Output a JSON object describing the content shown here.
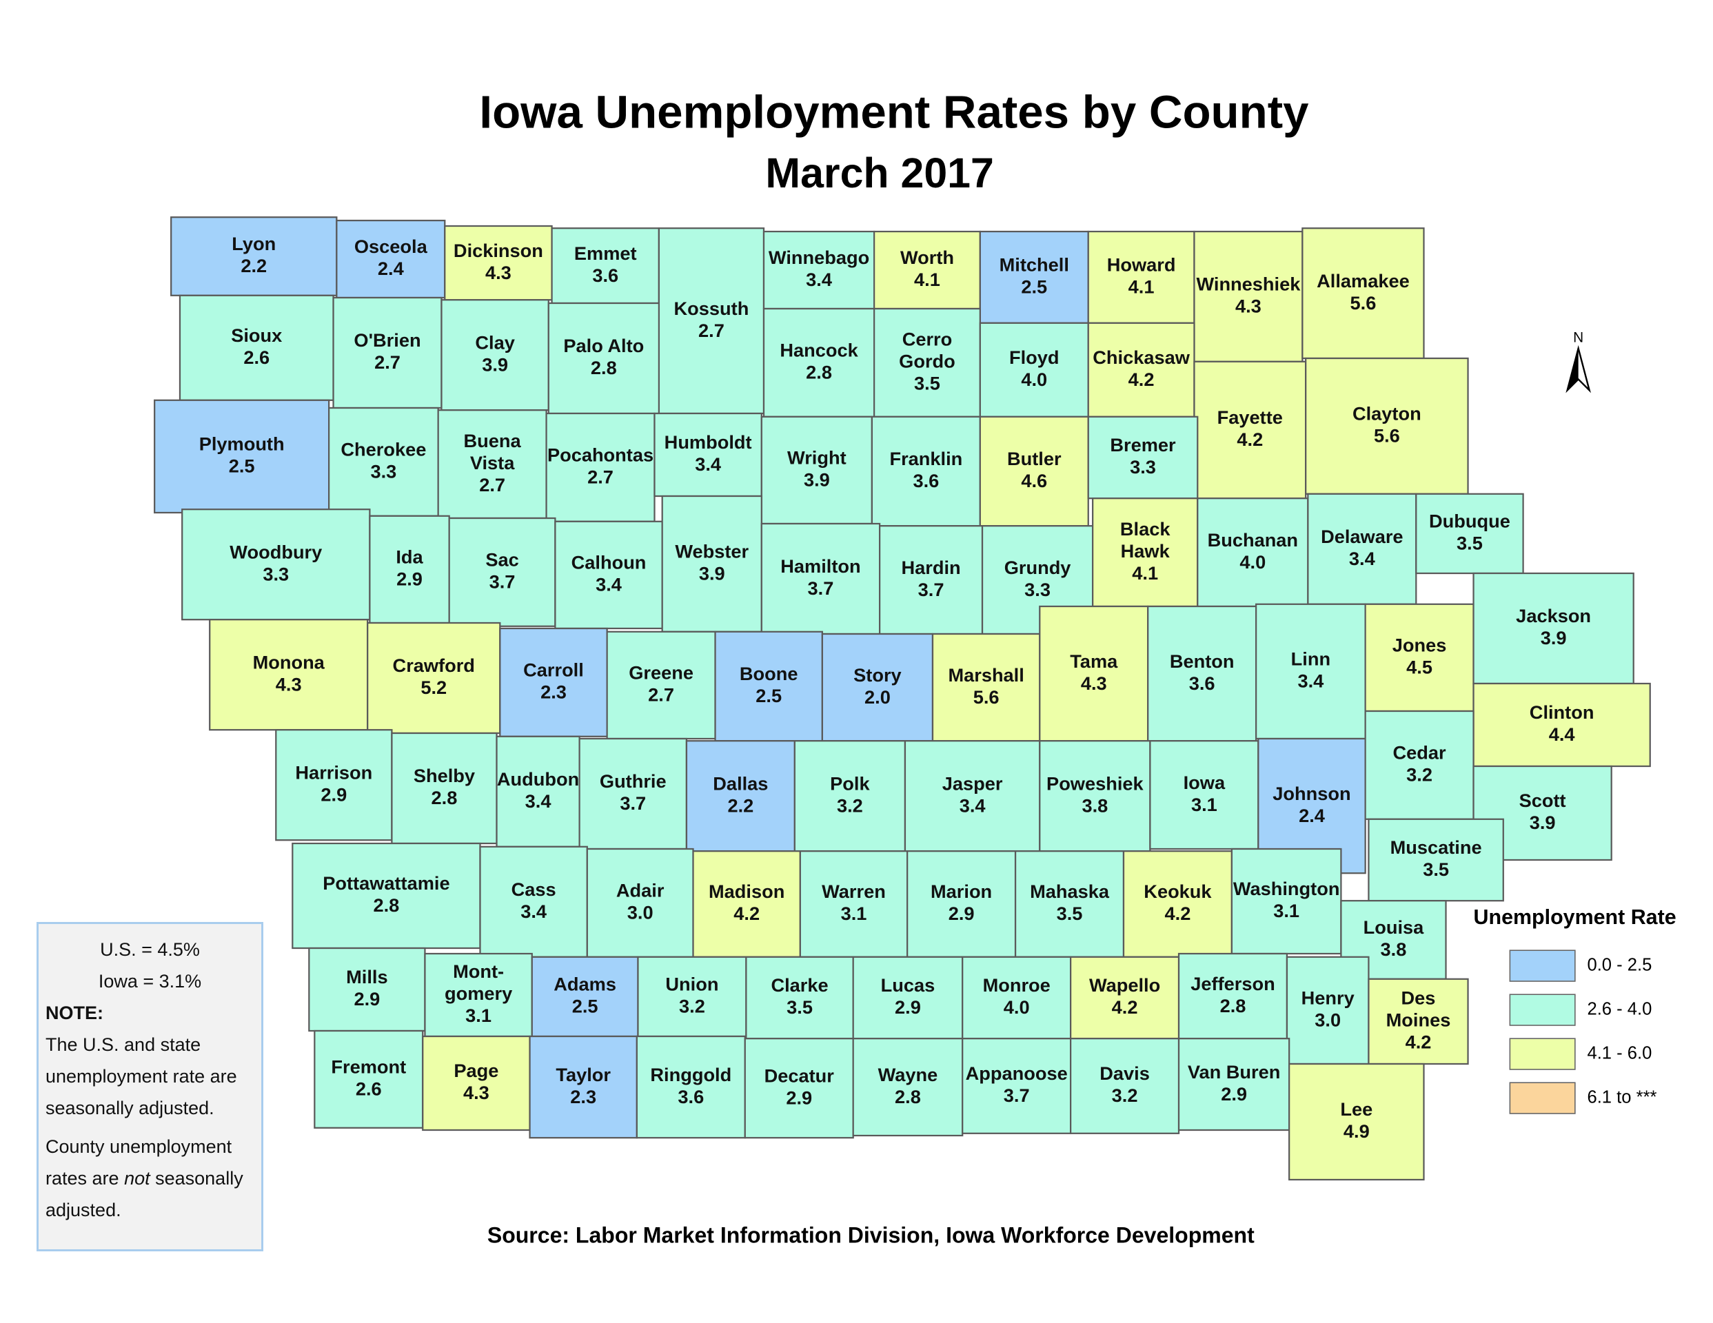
{
  "title": "Iowa Unemployment Rates by County",
  "subtitle": "March 2017",
  "north": "N",
  "source": "Source: Labor Market Information Division, Iowa Workforce Development",
  "legend": {
    "title": "Unemployment Rate",
    "items": [
      {
        "label": "0.0 - 2.5",
        "color": "#a3d2fa"
      },
      {
        "label": "2.6 - 4.0",
        "color": "#b1fbe3"
      },
      {
        "label": "4.1 - 6.0",
        "color": "#edffa8"
      },
      {
        "label": "6.1 to ***",
        "color": "#fbd59c"
      }
    ]
  },
  "note": {
    "us": "U.S. = 4.5%",
    "iowa": "Iowa = 3.1%",
    "heading": "NOTE:",
    "state": "The U.S. and state unemployment rate are seasonally adjusted.",
    "county": [
      "County unemployment rates are ",
      "not",
      " seasonally adjusted."
    ]
  },
  "counties": [
    {
      "name": [
        "Lyon"
      ],
      "value": "2.2",
      "color": "#a3d2fa"
    },
    {
      "name": [
        "Osceola"
      ],
      "value": "2.4",
      "color": "#a3d2fa"
    },
    {
      "name": [
        "Dickinson"
      ],
      "value": "4.3",
      "color": "#edffa8"
    },
    {
      "name": [
        "Emmet"
      ],
      "value": "3.6",
      "color": "#b1fbe3"
    },
    {
      "name": [
        "Kossuth"
      ],
      "value": "2.7",
      "color": "#b1fbe3"
    },
    {
      "name": [
        "Winnebago"
      ],
      "value": "3.4",
      "color": "#b1fbe3"
    },
    {
      "name": [
        "Worth"
      ],
      "value": "4.1",
      "color": "#edffa8"
    },
    {
      "name": [
        "Mitchell"
      ],
      "value": "2.5",
      "color": "#a3d2fa"
    },
    {
      "name": [
        "Howard"
      ],
      "value": "4.1",
      "color": "#edffa8"
    },
    {
      "name": [
        "Winneshiek"
      ],
      "value": "4.3",
      "color": "#edffa8"
    },
    {
      "name": [
        "Allamakee"
      ],
      "value": "5.6",
      "color": "#edffa8"
    },
    {
      "name": [
        "Sioux"
      ],
      "value": "2.6",
      "color": "#b1fbe3"
    },
    {
      "name": [
        "O'Brien"
      ],
      "value": "2.7",
      "color": "#b1fbe3"
    },
    {
      "name": [
        "Clay"
      ],
      "value": "3.9",
      "color": "#b1fbe3"
    },
    {
      "name": [
        "Palo Alto"
      ],
      "value": "2.8",
      "color": "#b1fbe3"
    },
    {
      "name": [
        "Hancock"
      ],
      "value": "2.8",
      "color": "#b1fbe3"
    },
    {
      "name": [
        "Cerro",
        "Gordo"
      ],
      "value": "3.5",
      "color": "#b1fbe3"
    },
    {
      "name": [
        "Floyd"
      ],
      "value": "4.0",
      "color": "#b1fbe3"
    },
    {
      "name": [
        "Chickasaw"
      ],
      "value": "4.2",
      "color": "#edffa8"
    },
    {
      "name": [
        "Fayette"
      ],
      "value": "4.2",
      "color": "#edffa8"
    },
    {
      "name": [
        "Clayton"
      ],
      "value": "5.6",
      "color": "#edffa8"
    },
    {
      "name": [
        "Plymouth"
      ],
      "value": "2.5",
      "color": "#a3d2fa"
    },
    {
      "name": [
        "Cherokee"
      ],
      "value": "3.3",
      "color": "#b1fbe3"
    },
    {
      "name": [
        "Buena",
        "Vista"
      ],
      "value": "2.7",
      "color": "#b1fbe3"
    },
    {
      "name": [
        "Pocahontas"
      ],
      "value": "2.7",
      "color": "#b1fbe3"
    },
    {
      "name": [
        "Humboldt"
      ],
      "value": "3.4",
      "color": "#b1fbe3"
    },
    {
      "name": [
        "Wright"
      ],
      "value": "3.9",
      "color": "#b1fbe3"
    },
    {
      "name": [
        "Franklin"
      ],
      "value": "3.6",
      "color": "#b1fbe3"
    },
    {
      "name": [
        "Butler"
      ],
      "value": "4.6",
      "color": "#edffa8"
    },
    {
      "name": [
        "Bremer"
      ],
      "value": "3.3",
      "color": "#b1fbe3"
    },
    {
      "name": [
        "Woodbury"
      ],
      "value": "3.3",
      "color": "#b1fbe3"
    },
    {
      "name": [
        "Ida"
      ],
      "value": "2.9",
      "color": "#b1fbe3"
    },
    {
      "name": [
        "Sac"
      ],
      "value": "3.7",
      "color": "#b1fbe3"
    },
    {
      "name": [
        "Calhoun"
      ],
      "value": "3.4",
      "color": "#b1fbe3"
    },
    {
      "name": [
        "Webster"
      ],
      "value": "3.9",
      "color": "#b1fbe3"
    },
    {
      "name": [
        "Hamilton"
      ],
      "value": "3.7",
      "color": "#b1fbe3"
    },
    {
      "name": [
        "Hardin"
      ],
      "value": "3.7",
      "color": "#b1fbe3"
    },
    {
      "name": [
        "Grundy"
      ],
      "value": "3.3",
      "color": "#b1fbe3"
    },
    {
      "name": [
        "Black",
        "Hawk"
      ],
      "value": "4.1",
      "color": "#edffa8"
    },
    {
      "name": [
        "Buchanan"
      ],
      "value": "4.0",
      "color": "#b1fbe3"
    },
    {
      "name": [
        "Delaware"
      ],
      "value": "3.4",
      "color": "#b1fbe3"
    },
    {
      "name": [
        "Dubuque"
      ],
      "value": "3.5",
      "color": "#b1fbe3"
    },
    {
      "name": [
        "Monona"
      ],
      "value": "4.3",
      "color": "#edffa8"
    },
    {
      "name": [
        "Crawford"
      ],
      "value": "5.2",
      "color": "#edffa8"
    },
    {
      "name": [
        "Carroll"
      ],
      "value": "2.3",
      "color": "#a3d2fa"
    },
    {
      "name": [
        "Greene"
      ],
      "value": "2.7",
      "color": "#b1fbe3"
    },
    {
      "name": [
        "Boone"
      ],
      "value": "2.5",
      "color": "#a3d2fa"
    },
    {
      "name": [
        "Story"
      ],
      "value": "2.0",
      "color": "#a3d2fa"
    },
    {
      "name": [
        "Marshall"
      ],
      "value": "5.6",
      "color": "#edffa8"
    },
    {
      "name": [
        "Tama"
      ],
      "value": "4.3",
      "color": "#edffa8"
    },
    {
      "name": [
        "Benton"
      ],
      "value": "3.6",
      "color": "#b1fbe3"
    },
    {
      "name": [
        "Linn"
      ],
      "value": "3.4",
      "color": "#b1fbe3"
    },
    {
      "name": [
        "Jones"
      ],
      "value": "4.5",
      "color": "#edffa8"
    },
    {
      "name": [
        "Jackson"
      ],
      "value": "3.9",
      "color": "#b1fbe3"
    },
    {
      "name": [
        "Clinton"
      ],
      "value": "4.4",
      "color": "#edffa8"
    },
    {
      "name": [
        "Harrison"
      ],
      "value": "2.9",
      "color": "#b1fbe3"
    },
    {
      "name": [
        "Shelby"
      ],
      "value": "2.8",
      "color": "#b1fbe3"
    },
    {
      "name": [
        "Audubon"
      ],
      "value": "3.4",
      "color": "#b1fbe3"
    },
    {
      "name": [
        "Guthrie"
      ],
      "value": "3.7",
      "color": "#b1fbe3"
    },
    {
      "name": [
        "Dallas"
      ],
      "value": "2.2",
      "color": "#a3d2fa"
    },
    {
      "name": [
        "Polk"
      ],
      "value": "3.2",
      "color": "#b1fbe3"
    },
    {
      "name": [
        "Jasper"
      ],
      "value": "3.4",
      "color": "#b1fbe3"
    },
    {
      "name": [
        "Poweshiek"
      ],
      "value": "3.8",
      "color": "#b1fbe3"
    },
    {
      "name": [
        "Iowa"
      ],
      "value": "3.1",
      "color": "#b1fbe3"
    },
    {
      "name": [
        "Johnson"
      ],
      "value": "2.4",
      "color": "#a3d2fa"
    },
    {
      "name": [
        "Cedar"
      ],
      "value": "3.2",
      "color": "#b1fbe3"
    },
    {
      "name": [
        "Scott"
      ],
      "value": "3.9",
      "color": "#b1fbe3"
    },
    {
      "name": [
        "Muscatine"
      ],
      "value": "3.5",
      "color": "#b1fbe3"
    },
    {
      "name": [
        "Pottawattamie"
      ],
      "value": "2.8",
      "color": "#b1fbe3"
    },
    {
      "name": [
        "Cass"
      ],
      "value": "3.4",
      "color": "#b1fbe3"
    },
    {
      "name": [
        "Adair"
      ],
      "value": "3.0",
      "color": "#b1fbe3"
    },
    {
      "name": [
        "Madison"
      ],
      "value": "4.2",
      "color": "#edffa8"
    },
    {
      "name": [
        "Warren"
      ],
      "value": "3.1",
      "color": "#b1fbe3"
    },
    {
      "name": [
        "Marion"
      ],
      "value": "2.9",
      "color": "#b1fbe3"
    },
    {
      "name": [
        "Mahaska"
      ],
      "value": "3.5",
      "color": "#b1fbe3"
    },
    {
      "name": [
        "Keokuk"
      ],
      "value": "4.2",
      "color": "#edffa8"
    },
    {
      "name": [
        "Washington"
      ],
      "value": "3.1",
      "color": "#b1fbe3"
    },
    {
      "name": [
        "Louisa"
      ],
      "value": "3.8",
      "color": "#b1fbe3"
    },
    {
      "name": [
        "Mills"
      ],
      "value": "2.9",
      "color": "#b1fbe3"
    },
    {
      "name": [
        "Mont-",
        "gomery"
      ],
      "value": "3.1",
      "color": "#b1fbe3"
    },
    {
      "name": [
        "Adams"
      ],
      "value": "2.5",
      "color": "#a3d2fa"
    },
    {
      "name": [
        "Union"
      ],
      "value": "3.2",
      "color": "#b1fbe3"
    },
    {
      "name": [
        "Clarke"
      ],
      "value": "3.5",
      "color": "#b1fbe3"
    },
    {
      "name": [
        "Lucas"
      ],
      "value": "2.9",
      "color": "#b1fbe3"
    },
    {
      "name": [
        "Monroe"
      ],
      "value": "4.0",
      "color": "#b1fbe3"
    },
    {
      "name": [
        "Wapello"
      ],
      "value": "4.2",
      "color": "#edffa8"
    },
    {
      "name": [
        "Jefferson"
      ],
      "value": "2.8",
      "color": "#b1fbe3"
    },
    {
      "name": [
        "Henry"
      ],
      "value": "3.0",
      "color": "#b1fbe3"
    },
    {
      "name": [
        "Des",
        "Moines"
      ],
      "value": "4.2",
      "color": "#edffa8"
    },
    {
      "name": [
        "Fremont"
      ],
      "value": "2.6",
      "color": "#b1fbe3"
    },
    {
      "name": [
        "Page"
      ],
      "value": "4.3",
      "color": "#edffa8"
    },
    {
      "name": [
        "Taylor"
      ],
      "value": "2.3",
      "color": "#a3d2fa"
    },
    {
      "name": [
        "Ringgold"
      ],
      "value": "3.6",
      "color": "#b1fbe3"
    },
    {
      "name": [
        "Decatur"
      ],
      "value": "2.9",
      "color": "#b1fbe3"
    },
    {
      "name": [
        "Wayne"
      ],
      "value": "2.8",
      "color": "#b1fbe3"
    },
    {
      "name": [
        "Appanoose"
      ],
      "value": "3.7",
      "color": "#b1fbe3"
    },
    {
      "name": [
        "Davis"
      ],
      "value": "3.2",
      "color": "#b1fbe3"
    },
    {
      "name": [
        "Van Buren"
      ],
      "value": "2.9",
      "color": "#b1fbe3"
    },
    {
      "name": [
        "Lee"
      ],
      "value": "4.9",
      "color": "#edffa8"
    }
  ]
}
